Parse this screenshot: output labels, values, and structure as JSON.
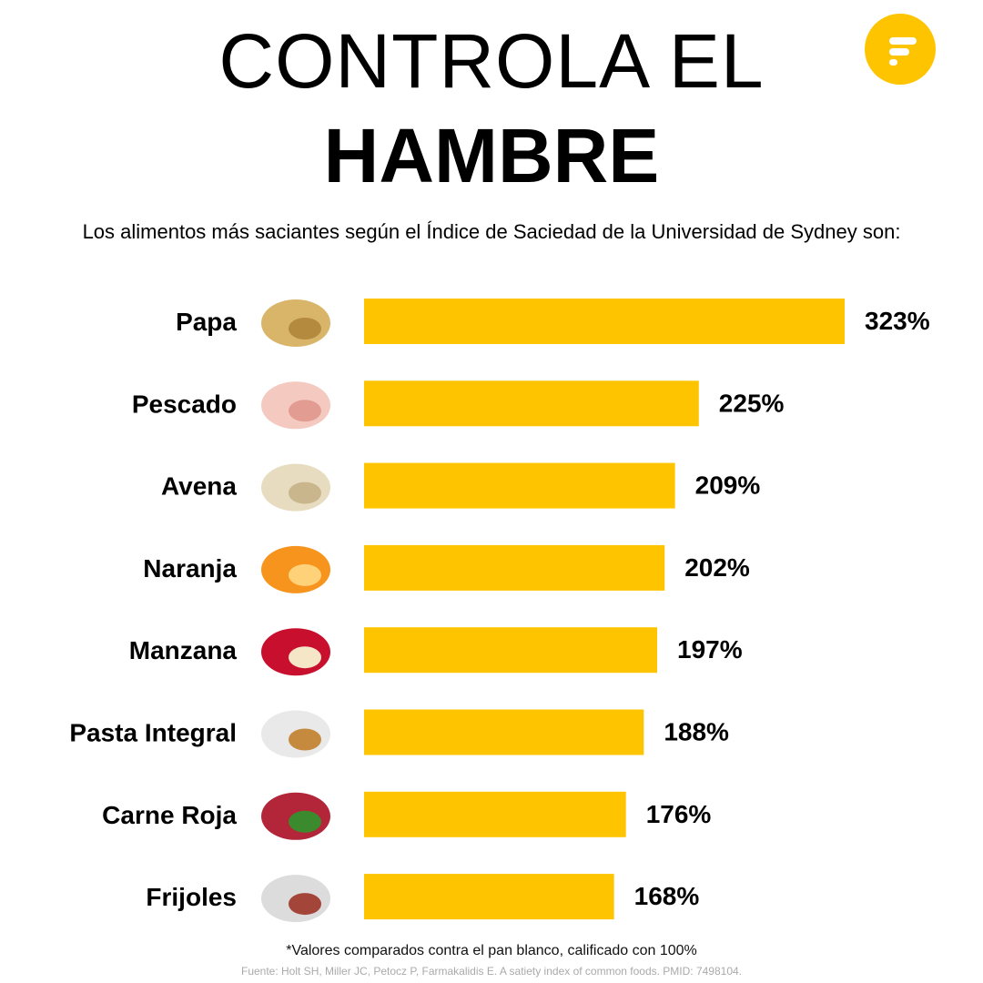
{
  "header": {
    "title_line1": "CONTROLA EL",
    "title_line2": "HAMBRE",
    "logo_icon": "brand-f-logo-icon"
  },
  "subtitle": "Los alimentos más saciantes según el Índice de Saciedad de la Universidad de Sydney son:",
  "chart_data": {
    "type": "bar",
    "orientation": "horizontal",
    "categories": [
      "Papa",
      "Pescado",
      "Avena",
      "Naranja",
      "Manzana",
      "Pasta Integral",
      "Carne Roja",
      "Frijoles"
    ],
    "values": [
      323,
      225,
      209,
      202,
      197,
      188,
      176,
      168
    ],
    "value_labels": [
      "323%",
      "225%",
      "209%",
      "202%",
      "197%",
      "188%",
      "176%",
      "168%"
    ],
    "icons": [
      "potato-icon",
      "fish-icon",
      "oats-icon",
      "orange-icon",
      "apple-icon",
      "pasta-icon",
      "red-meat-icon",
      "beans-icon"
    ],
    "bar_color": "#FFC400",
    "xlim": [
      0,
      323
    ],
    "grid": false
  },
  "footer": {
    "note": "*Valores comparados contra el pan blanco, calificado con 100%",
    "source": "Fuente: Holt SH, Miller JC, Petocz P, Farmakalidis E. A satiety index of common foods. PMID: 7498104."
  }
}
